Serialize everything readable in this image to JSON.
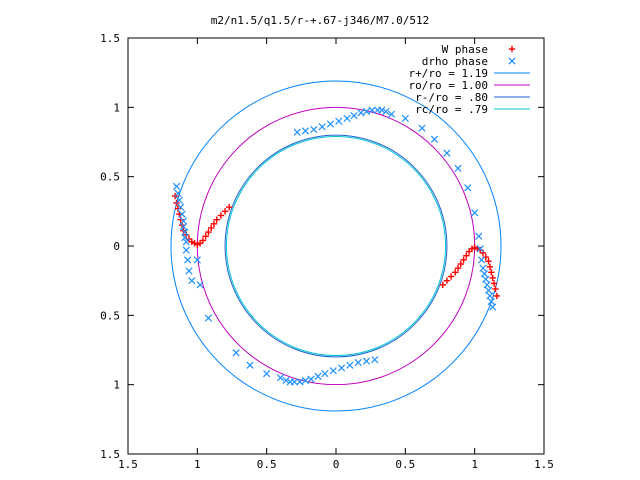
{
  "chart_data": {
    "type": "scatter",
    "title": "m2/n1.5/q1.5/r-+.67-j346/M7.0/512",
    "xlim": [
      -1.5,
      1.5
    ],
    "ylim": [
      -1.5,
      1.5
    ],
    "x_ticks": [
      -1.5,
      -1,
      -0.5,
      0,
      0.5,
      1,
      1.5
    ],
    "y_ticks": [
      -1.5,
      -1,
      -0.5,
      0,
      0.5,
      1,
      1.5
    ],
    "x_tick_labels": [
      "1.5",
      "1",
      "0.5",
      "0",
      "0.5",
      "1",
      "1.5"
    ],
    "y_tick_labels": [
      "1.5",
      "1",
      "0.5",
      "0",
      "0.5",
      "1",
      "1.5"
    ],
    "grid": false,
    "legend_position": "top-right",
    "series": [
      {
        "name": "W phase",
        "kind": "points",
        "marker": "plus",
        "color": "#ff0000",
        "points": [
          [
            -1.16,
            0.36
          ],
          [
            -1.15,
            0.31
          ],
          [
            -1.14,
            0.27
          ],
          [
            -1.13,
            0.23
          ],
          [
            -1.12,
            0.19
          ],
          [
            -1.11,
            0.15
          ],
          [
            -1.1,
            0.11
          ],
          [
            -1.08,
            0.08
          ],
          [
            -1.06,
            0.05
          ],
          [
            -1.04,
            0.03
          ],
          [
            -1.02,
            0.02
          ],
          [
            -1.0,
            0.01
          ],
          [
            -0.98,
            0.02
          ],
          [
            -0.96,
            0.04
          ],
          [
            -0.94,
            0.07
          ],
          [
            -0.92,
            0.1
          ],
          [
            -0.9,
            0.13
          ],
          [
            -0.88,
            0.16
          ],
          [
            -0.86,
            0.19
          ],
          [
            -0.83,
            0.22
          ],
          [
            -0.8,
            0.25
          ],
          [
            -0.77,
            0.28
          ],
          [
            0.77,
            -0.28
          ],
          [
            0.8,
            -0.25
          ],
          [
            0.83,
            -0.22
          ],
          [
            0.86,
            -0.19
          ],
          [
            0.88,
            -0.16
          ],
          [
            0.9,
            -0.13
          ],
          [
            0.92,
            -0.1
          ],
          [
            0.94,
            -0.07
          ],
          [
            0.96,
            -0.04
          ],
          [
            0.98,
            -0.02
          ],
          [
            1.0,
            -0.01
          ],
          [
            1.02,
            -0.02
          ],
          [
            1.04,
            -0.03
          ],
          [
            1.06,
            -0.05
          ],
          [
            1.08,
            -0.08
          ],
          [
            1.1,
            -0.11
          ],
          [
            1.11,
            -0.15
          ],
          [
            1.12,
            -0.19
          ],
          [
            1.13,
            -0.23
          ],
          [
            1.14,
            -0.27
          ],
          [
            1.15,
            -0.31
          ],
          [
            1.16,
            -0.36
          ]
        ]
      },
      {
        "name": "drho phase",
        "kind": "points",
        "marker": "cross",
        "color": "#1e90ff",
        "points": [
          [
            -1.15,
            0.43
          ],
          [
            -1.14,
            0.38
          ],
          [
            -1.13,
            0.33
          ],
          [
            -1.12,
            0.28
          ],
          [
            -1.11,
            0.23
          ],
          [
            -1.1,
            0.18
          ],
          [
            -1.1,
            0.14
          ],
          [
            -1.09,
            0.1
          ],
          [
            -1.09,
            0.06
          ],
          [
            -1.08,
            0.03
          ],
          [
            -1.08,
            -0.03
          ],
          [
            -1.07,
            -0.1
          ],
          [
            -1.06,
            -0.18
          ],
          [
            -1.04,
            -0.25
          ],
          [
            -0.28,
            0.82
          ],
          [
            -0.22,
            0.83
          ],
          [
            -0.16,
            0.84
          ],
          [
            -0.1,
            0.86
          ],
          [
            -0.04,
            0.88
          ],
          [
            0.02,
            0.9
          ],
          [
            0.08,
            0.92
          ],
          [
            0.13,
            0.94
          ],
          [
            0.18,
            0.96
          ],
          [
            0.22,
            0.97
          ],
          [
            0.26,
            0.98
          ],
          [
            0.3,
            0.98
          ],
          [
            0.33,
            0.98
          ],
          [
            0.36,
            0.97
          ],
          [
            0.4,
            0.95
          ],
          [
            0.5,
            0.92
          ],
          [
            0.62,
            0.85
          ],
          [
            0.71,
            0.77
          ],
          [
            0.8,
            0.67
          ],
          [
            0.88,
            0.56
          ],
          [
            0.95,
            0.42
          ],
          [
            1.0,
            0.24
          ],
          [
            1.03,
            0.07
          ],
          [
            1.04,
            -0.02
          ],
          [
            1.05,
            -0.1
          ],
          [
            1.06,
            -0.16
          ],
          [
            1.07,
            -0.2
          ],
          [
            1.08,
            -0.24
          ],
          [
            1.09,
            -0.28
          ],
          [
            1.1,
            -0.32
          ],
          [
            1.11,
            -0.36
          ],
          [
            1.12,
            -0.4
          ],
          [
            1.13,
            -0.44
          ],
          [
            0.28,
            -0.82
          ],
          [
            0.22,
            -0.83
          ],
          [
            0.16,
            -0.84
          ],
          [
            0.1,
            -0.86
          ],
          [
            0.04,
            -0.88
          ],
          [
            -0.02,
            -0.9
          ],
          [
            -0.08,
            -0.92
          ],
          [
            -0.13,
            -0.94
          ],
          [
            -0.18,
            -0.96
          ],
          [
            -0.22,
            -0.97
          ],
          [
            -0.26,
            -0.98
          ],
          [
            -0.3,
            -0.98
          ],
          [
            -0.33,
            -0.98
          ],
          [
            -0.36,
            -0.97
          ],
          [
            -0.4,
            -0.95
          ],
          [
            -0.5,
            -0.92
          ],
          [
            -0.62,
            -0.86
          ],
          [
            -0.72,
            -0.77
          ],
          [
            -1.0,
            -0.1
          ],
          [
            -0.98,
            -0.28
          ],
          [
            -0.92,
            -0.52
          ]
        ]
      },
      {
        "name": "r+/ro = 1.19",
        "kind": "circle",
        "radius": 1.19,
        "color": "#0080ff"
      },
      {
        "name": "ro/ro = 1.00",
        "kind": "circle",
        "radius": 1.0,
        "color": "#c000c0"
      },
      {
        "name": "r-/ro = .80",
        "kind": "circle",
        "radius": 0.8,
        "color": "#2060d0"
      },
      {
        "name": "rc/ro = .79",
        "kind": "circle",
        "radius": 0.79,
        "color": "#00c8d0"
      }
    ]
  }
}
